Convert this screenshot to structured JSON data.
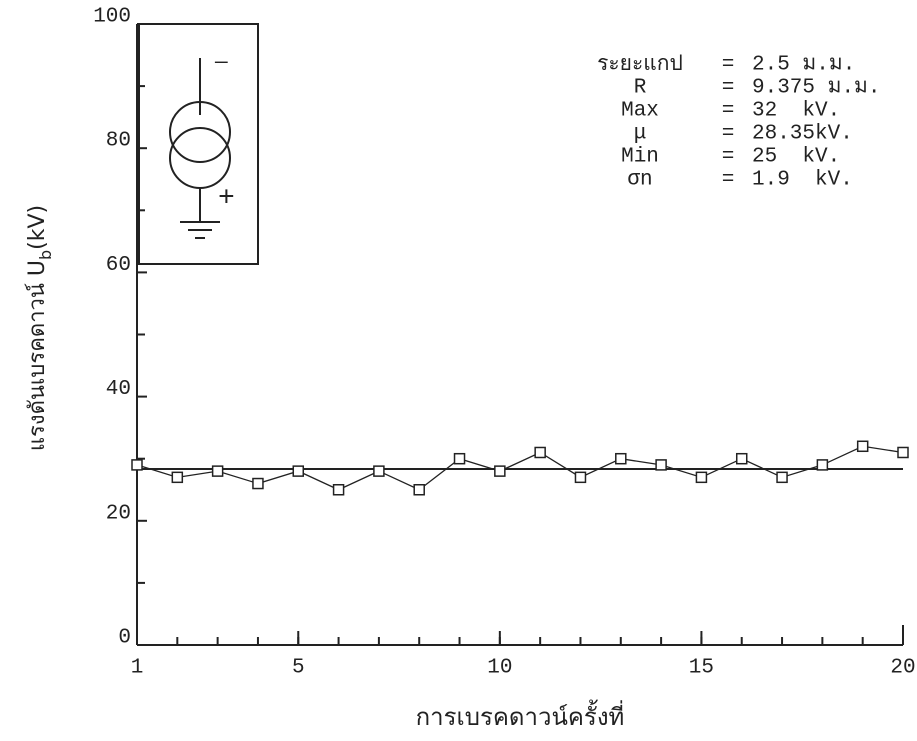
{
  "chart_data": {
    "type": "line",
    "xlabel": "การเบรคดาวน์ครั้งที่",
    "ylabel": "แรงดันเบรคดาวน์ U",
    "ylabel_sub": "b",
    "ylabel_unit": "(kV)",
    "x": [
      1,
      2,
      3,
      4,
      5,
      6,
      7,
      8,
      9,
      10,
      11,
      12,
      13,
      14,
      15,
      16,
      17,
      18,
      19,
      20
    ],
    "series": [
      {
        "color": "#222222",
        "values": [
          29,
          27,
          28,
          26,
          28,
          25,
          28,
          25,
          30,
          28,
          31,
          27,
          30,
          29,
          27,
          30,
          27,
          29,
          32,
          31
        ]
      }
    ],
    "mean_line": 28.35,
    "xlim": [
      1,
      20
    ],
    "xticks": [
      1,
      5,
      10,
      15,
      20
    ],
    "ylim": [
      0,
      100
    ],
    "yticks": [
      0,
      20,
      40,
      60,
      80,
      100
    ],
    "annotations": [
      [
        "ระยะแกป",
        "=",
        "2.5 ม.ม."
      ],
      [
        "R",
        "=",
        "9.375 ม.ม."
      ],
      [
        "Max",
        "=",
        "32  kV."
      ],
      [
        "μ",
        "=",
        "28.35kV."
      ],
      [
        "Min",
        "=",
        "25  kV."
      ],
      [
        "σn",
        "=",
        "1.9  kV."
      ]
    ],
    "inset": {
      "minus": "—",
      "plus": "+"
    }
  }
}
